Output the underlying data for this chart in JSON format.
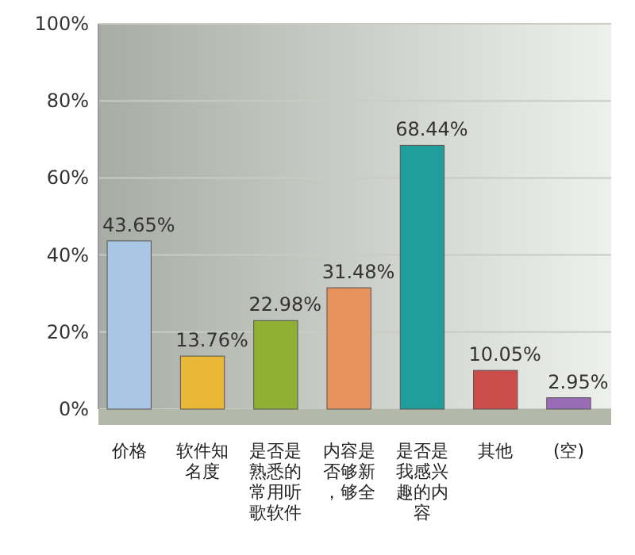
{
  "chart_data": {
    "type": "bar",
    "categories": [
      "价格",
      "软件知名度",
      "是否是熟悉的常用听歌软件",
      "内容是否够新，够全",
      "是否是我感兴趣的内容",
      "其他",
      "(空)"
    ],
    "values": [
      43.65,
      13.76,
      22.98,
      31.48,
      68.44,
      10.05,
      2.95
    ],
    "value_labels": [
      "43.65%",
      "13.76%",
      "22.98%",
      "31.48%",
      "68.44%",
      "10.05%",
      "2.95%"
    ],
    "colors": [
      "#a9c6e4",
      "#e8b836",
      "#8fb032",
      "#e8925e",
      "#1f9e9c",
      "#cc4c4c",
      "#9a6cb8"
    ],
    "ylim": [
      0,
      100
    ],
    "yticks": [
      {
        "value": 0,
        "label": "0%"
      },
      {
        "value": 20,
        "label": "20%"
      },
      {
        "value": 40,
        "label": "40%"
      },
      {
        "value": 60,
        "label": "60%"
      },
      {
        "value": 80,
        "label": "80%"
      },
      {
        "value": 100,
        "label": "100%"
      }
    ],
    "grid": "y"
  }
}
